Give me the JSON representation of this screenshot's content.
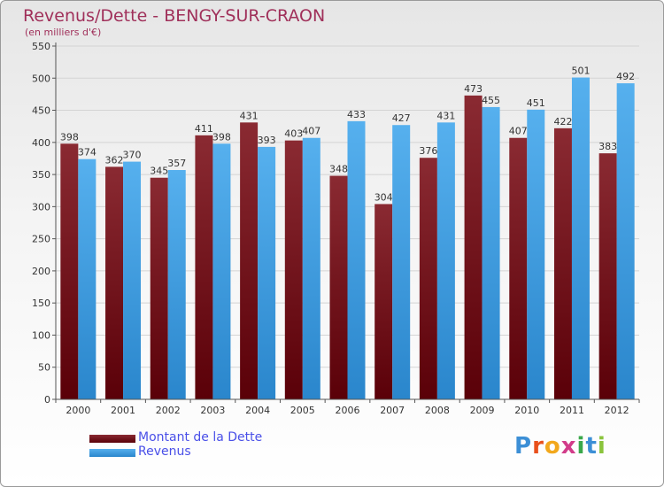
{
  "header": {
    "title": "Revenus/Dette - BENGY-SUR-CRAON",
    "subtitle": "(en milliers d'€)"
  },
  "chart_data": {
    "type": "bar",
    "title": "Revenus/Dette - BENGY-SUR-CRAON",
    "ylabel": "(en milliers d'€)",
    "xlabel": "",
    "categories": [
      "2000",
      "2001",
      "2002",
      "2003",
      "2004",
      "2005",
      "2006",
      "2007",
      "2008",
      "2009",
      "2010",
      "2011",
      "2012"
    ],
    "series": [
      {
        "name": "Montant de la Dette",
        "color": "#7a1e26",
        "values": [
          398,
          362,
          345,
          411,
          431,
          403,
          348,
          304,
          376,
          473,
          407,
          422,
          383
        ]
      },
      {
        "name": "Revenus",
        "color": "#3a9ee2",
        "values": [
          374,
          370,
          357,
          398,
          393,
          407,
          433,
          427,
          431,
          455,
          451,
          501,
          492
        ]
      }
    ],
    "ylim": [
      0,
      550
    ],
    "yticks": [
      0,
      50,
      100,
      150,
      200,
      250,
      300,
      350,
      400,
      450,
      500,
      550
    ],
    "grid": true,
    "legend_position": "bottom-left"
  },
  "legend": {
    "items": [
      {
        "label": "Montant de la Dette",
        "color": "#6a0f14"
      },
      {
        "label": "Revenus",
        "color": "#3a9ee2"
      }
    ]
  },
  "logo": {
    "letters": [
      {
        "ch": "P",
        "color": "#3c8fd6"
      },
      {
        "ch": "r",
        "color": "#e8501c"
      },
      {
        "ch": "o",
        "color": "#f2a81c"
      },
      {
        "ch": "x",
        "color": "#d23c8a"
      },
      {
        "ch": "i",
        "color": "#3aa84a"
      },
      {
        "ch": "t",
        "color": "#3c8fd6"
      },
      {
        "ch": "i",
        "color": "#8ac43c"
      }
    ]
  }
}
